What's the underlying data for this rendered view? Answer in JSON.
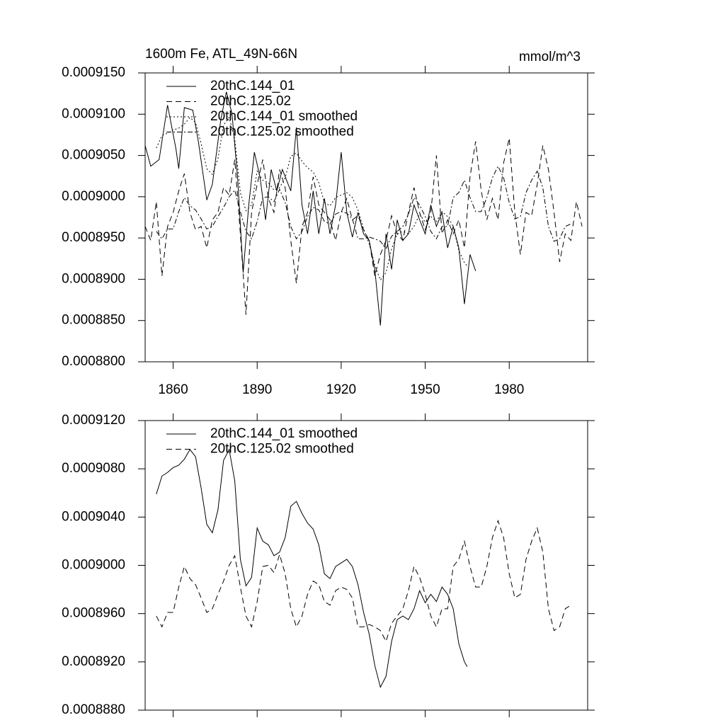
{
  "chart_data": [
    {
      "type": "line",
      "title": "1600m Fe, ATL_49N-66N",
      "units": "mmol/m^3",
      "xlim": [
        1850,
        2008
      ],
      "xticks": [
        1860,
        1890,
        1920,
        1950,
        1980
      ],
      "ylim": [
        0.00088,
        0.000915
      ],
      "yticks": [
        {
          "value": 0.00088,
          "label": "0.0008800"
        },
        {
          "value": 0.000885,
          "label": "0.0008850"
        },
        {
          "value": 0.00089,
          "label": "0.0008900"
        },
        {
          "value": 0.000895,
          "label": "0.0008950"
        },
        {
          "value": 0.0009,
          "label": "0.0009000"
        },
        {
          "value": 0.000905,
          "label": "0.0009050"
        },
        {
          "value": 0.00091,
          "label": "0.0009100"
        },
        {
          "value": 0.000915,
          "label": "0.0009150"
        }
      ],
      "series": [
        {
          "name": "20thC.144_01",
          "color": "#000000",
          "dash": "solid",
          "x": [
            1850,
            1852,
            1855,
            1858,
            1861,
            1862,
            1864,
            1867,
            1869,
            1872,
            1874,
            1877,
            1879,
            1881,
            1883,
            1885,
            1887,
            1889,
            1891,
            1893,
            1895,
            1897,
            1899,
            1902,
            1904,
            1906,
            1908,
            1910,
            1912,
            1914,
            1916,
            1918,
            1920,
            1922,
            1924,
            1926,
            1928,
            1930,
            1932,
            1934,
            1936,
            1938,
            1940,
            1942,
            1944,
            1946,
            1948,
            1950,
            1952,
            1954,
            1956,
            1958,
            1960,
            1962,
            1964,
            1966,
            1968
          ],
          "values": [
            0.0009062,
            0.0009037,
            0.0009045,
            0.0009111,
            0.0009058,
            0.0009034,
            0.0009108,
            0.0009105,
            0.0009067,
            0.0008996,
            0.0009015,
            0.0009093,
            0.0009127,
            0.0009101,
            0.0009024,
            0.0008908,
            0.000899,
            0.0009054,
            0.0009024,
            0.0008972,
            0.0009033,
            0.0009007,
            0.0009033,
            0.0009007,
            0.0009084,
            0.000899,
            0.0008955,
            0.0009007,
            0.0008955,
            0.0008998,
            0.0008955,
            0.000899,
            0.0009054,
            0.0008981,
            0.0008951,
            0.0008981,
            0.0008955,
            0.0008947,
            0.0008912,
            0.0008844,
            0.0008955,
            0.0008912,
            0.0008972,
            0.0008947,
            0.0008955,
            0.000899,
            0.0008972,
            0.0008955,
            0.000899,
            0.0008964,
            0.0008981,
            0.0008938,
            0.0008964,
            0.0008938,
            0.000887,
            0.000893,
            0.000891
          ]
        },
        {
          "name": "20thC.125.02",
          "color": "#000000",
          "dash": "dash",
          "x": [
            1850,
            1852,
            1854,
            1856,
            1858,
            1860,
            1862,
            1864,
            1866,
            1868,
            1870,
            1872,
            1874,
            1876,
            1878,
            1880,
            1882,
            1884,
            1886,
            1888,
            1890,
            1892,
            1894,
            1896,
            1898,
            1900,
            1902,
            1904,
            1906,
            1908,
            1910,
            1912,
            1914,
            1916,
            1918,
            1920,
            1922,
            1924,
            1926,
            1928,
            1930,
            1932,
            1934,
            1936,
            1938,
            1940,
            1942,
            1944,
            1946,
            1948,
            1950,
            1952,
            1954,
            1956,
            1958,
            1960,
            1962,
            1964,
            1966,
            1968,
            1970,
            1972,
            1974,
            1976,
            1978,
            1980,
            1982,
            1984,
            1986,
            1988,
            1990,
            1992,
            1994,
            1996,
            1998,
            2000,
            2002,
            2004,
            2006
          ],
          "values": [
            0.0008964,
            0.0008947,
            0.0008994,
            0.0008904,
            0.0008964,
            0.0008981,
            0.0009007,
            0.0009028,
            0.0008981,
            0.000896,
            0.0008964,
            0.0008938,
            0.0008972,
            0.0008981,
            0.0009011,
            0.0009002,
            0.0009045,
            0.0008955,
            0.0008857,
            0.0008981,
            0.0009015,
            0.0009045,
            0.0008998,
            0.0008981,
            0.0009033,
            0.0009011,
            0.0008947,
            0.0008895,
            0.0008964,
            0.0008981,
            0.0009024,
            0.000899,
            0.0008981,
            0.0008972,
            0.0008947,
            0.0008981,
            0.0008998,
            0.0008972,
            0.0008977,
            0.000896,
            0.0008947,
            0.0008904,
            0.000893,
            0.0008947,
            0.0008977,
            0.0008955,
            0.0008947,
            0.0008981,
            0.0009011,
            0.0008981,
            0.000896,
            0.0008981,
            0.000905,
            0.0008955,
            0.0008972,
            0.0008955,
            0.0008972,
            0.0008938,
            0.0009024,
            0.0009067,
            0.0009007,
            0.0008972,
            0.0008998,
            0.0008972,
            0.0009041,
            0.0009071,
            0.0008981,
            0.000893,
            0.0008981,
            0.0008977,
            0.0009015,
            0.0009062,
            0.0009033,
            0.0008981,
            0.0008921,
            0.0008955,
            0.0008947,
            0.0008994,
            0.0008964
          ]
        },
        {
          "name": "20thC.144_01 smoothed",
          "color": "#000000",
          "dash": "dot",
          "x": [
            1854,
            1856,
            1858,
            1860,
            1862,
            1864,
            1866,
            1868,
            1870,
            1872,
            1874,
            1876,
            1878,
            1880,
            1882,
            1884,
            1886,
            1888,
            1890,
            1892,
            1894,
            1896,
            1898,
            1900,
            1902,
            1904,
            1906,
            1908,
            1910,
            1912,
            1914,
            1916,
            1918,
            1920,
            1922,
            1924,
            1926,
            1928,
            1930,
            1932,
            1934,
            1936,
            1938,
            1940,
            1942,
            1944,
            1946,
            1948,
            1950,
            1952,
            1954,
            1956,
            1958,
            1960,
            1962,
            1964,
            1965
          ],
          "values": [
            0.0009059,
            0.0009074,
            0.0009077,
            0.0009081,
            0.0009083,
            0.0009088,
            0.0009096,
            0.000909,
            0.0009064,
            0.0009034,
            0.0009027,
            0.0009046,
            0.0009087,
            0.0009096,
            0.000907,
            0.0009005,
            0.0008983,
            0.000899,
            0.0009031,
            0.000902,
            0.0009017,
            0.0009008,
            0.0009011,
            0.0009023,
            0.0009049,
            0.0009053,
            0.0009043,
            0.0009035,
            0.000903,
            0.0009017,
            0.0008993,
            0.0008989,
            0.0008999,
            0.0009002,
            0.0009005,
            0.0008999,
            0.0008984,
            0.0008961,
            0.0008943,
            0.0008917,
            0.0008899,
            0.0008908,
            0.0008937,
            0.0008955,
            0.0008958,
            0.0008955,
            0.0008964,
            0.0008979,
            0.0008969,
            0.0008976,
            0.000897,
            0.0008982,
            0.0008976,
            0.0008964,
            0.0008935,
            0.000892,
            0.0008916
          ]
        },
        {
          "name": "20thC.125.02 smoothed",
          "color": "#000000",
          "dash": "dashdot",
          "x": [
            1854,
            1856,
            1858,
            1860,
            1862,
            1864,
            1866,
            1868,
            1870,
            1872,
            1874,
            1876,
            1878,
            1880,
            1882,
            1884,
            1886,
            1888,
            1890,
            1892,
            1894,
            1896,
            1898,
            1900,
            1902,
            1904,
            1906,
            1908,
            1910,
            1912,
            1914,
            1916,
            1918,
            1920,
            1922,
            1924,
            1926,
            1928,
            1930,
            1932,
            1934,
            1936,
            1938,
            1940,
            1942,
            1944,
            1946,
            1948,
            1950,
            1952,
            1954,
            1956,
            1958,
            1960,
            1962,
            1964,
            1966,
            1968,
            1970,
            1972,
            1974,
            1976,
            1978,
            1980,
            1982,
            1984,
            1986,
            1988,
            1990,
            1992,
            1994,
            1996,
            1998,
            2000,
            2002
          ],
          "values": [
            0.0008958,
            0.0008949,
            0.0008961,
            0.0008961,
            0.0008982,
            0.0008999,
            0.0008989,
            0.0008984,
            0.0008973,
            0.0008961,
            0.0008964,
            0.0008976,
            0.0008987,
            0.0009,
            0.0009008,
            0.0008982,
            0.0008958,
            0.0008949,
            0.000897,
            0.0008999,
            0.0009,
            0.0008994,
            0.0009009,
            0.0008993,
            0.0008964,
            0.0008949,
            0.0008958,
            0.0008976,
            0.0008987,
            0.0008984,
            0.000897,
            0.0008967,
            0.0008979,
            0.0008982,
            0.000898,
            0.0008973,
            0.0008949,
            0.0008949,
            0.0008951,
            0.0008949,
            0.0008946,
            0.0008937,
            0.0008952,
            0.0008958,
            0.0008964,
            0.0008979,
            0.0008999,
            0.000899,
            0.0008976,
            0.0008958,
            0.0008949,
            0.0008964,
            0.0008964,
            0.0008999,
            0.0009005,
            0.000902,
            0.0008999,
            0.0008982,
            0.0008982,
            0.0008999,
            0.0009023,
            0.0009037,
            0.0009023,
            0.0008993,
            0.0008973,
            0.0008976,
            0.0009005,
            0.000902,
            0.0009031,
            0.0009011,
            0.0008964,
            0.0008946,
            0.0008949,
            0.0008964,
            0.0008967
          ]
        }
      ]
    },
    {
      "type": "line",
      "xlim": [
        1850,
        2008
      ],
      "xticks": [
        1860,
        1890,
        1920,
        1950,
        1980
      ],
      "ylim": [
        0.000888,
        0.000912
      ],
      "yticks": [
        {
          "value": 0.000888,
          "label": "0.0008880"
        },
        {
          "value": 0.000892,
          "label": "0.0008920"
        },
        {
          "value": 0.000896,
          "label": "0.0008960"
        },
        {
          "value": 0.0009,
          "label": "0.0009000"
        },
        {
          "value": 0.000904,
          "label": "0.0009040"
        },
        {
          "value": 0.000908,
          "label": "0.0009080"
        },
        {
          "value": 0.000912,
          "label": "0.0009120"
        }
      ],
      "series": [
        {
          "name": "20thC.144_01 smoothed",
          "color": "#000000",
          "dash": "solid",
          "x": [
            1854,
            1856,
            1858,
            1860,
            1862,
            1864,
            1866,
            1868,
            1870,
            1872,
            1874,
            1876,
            1878,
            1880,
            1882,
            1884,
            1886,
            1888,
            1890,
            1892,
            1894,
            1896,
            1898,
            1900,
            1902,
            1904,
            1906,
            1908,
            1910,
            1912,
            1914,
            1916,
            1918,
            1920,
            1922,
            1924,
            1926,
            1928,
            1930,
            1932,
            1934,
            1936,
            1938,
            1940,
            1942,
            1944,
            1946,
            1948,
            1950,
            1952,
            1954,
            1956,
            1958,
            1960,
            1962,
            1964,
            1965
          ],
          "values": [
            0.0009059,
            0.0009074,
            0.0009077,
            0.0009081,
            0.0009083,
            0.0009088,
            0.0009096,
            0.000909,
            0.0009064,
            0.0009034,
            0.0009027,
            0.0009046,
            0.0009087,
            0.0009096,
            0.000907,
            0.0009005,
            0.0008983,
            0.000899,
            0.0009031,
            0.000902,
            0.0009017,
            0.0009008,
            0.0009011,
            0.0009023,
            0.0009049,
            0.0009053,
            0.0009043,
            0.0009035,
            0.000903,
            0.0009017,
            0.0008993,
            0.0008989,
            0.0008999,
            0.0009002,
            0.0009005,
            0.0008999,
            0.0008984,
            0.0008961,
            0.0008943,
            0.0008917,
            0.0008899,
            0.0008908,
            0.0008937,
            0.0008955,
            0.0008958,
            0.0008955,
            0.0008964,
            0.0008979,
            0.0008969,
            0.0008976,
            0.000897,
            0.0008982,
            0.0008976,
            0.0008964,
            0.0008935,
            0.000892,
            0.0008916
          ]
        },
        {
          "name": "20thC.125.02 smoothed",
          "color": "#000000",
          "dash": "dash",
          "x": [
            1854,
            1856,
            1858,
            1860,
            1862,
            1864,
            1866,
            1868,
            1870,
            1872,
            1874,
            1876,
            1878,
            1880,
            1882,
            1884,
            1886,
            1888,
            1890,
            1892,
            1894,
            1896,
            1898,
            1900,
            1902,
            1904,
            1906,
            1908,
            1910,
            1912,
            1914,
            1916,
            1918,
            1920,
            1922,
            1924,
            1926,
            1928,
            1930,
            1932,
            1934,
            1936,
            1938,
            1940,
            1942,
            1944,
            1946,
            1948,
            1950,
            1952,
            1954,
            1956,
            1958,
            1960,
            1962,
            1964,
            1966,
            1968,
            1970,
            1972,
            1974,
            1976,
            1978,
            1980,
            1982,
            1984,
            1986,
            1988,
            1990,
            1992,
            1994,
            1996,
            1998,
            2000,
            2002
          ],
          "values": [
            0.0008958,
            0.0008949,
            0.0008961,
            0.0008961,
            0.0008982,
            0.0008999,
            0.0008989,
            0.0008984,
            0.0008973,
            0.0008961,
            0.0008964,
            0.0008976,
            0.0008987,
            0.0009,
            0.0009008,
            0.0008982,
            0.0008958,
            0.0008949,
            0.000897,
            0.0008999,
            0.0009,
            0.0008994,
            0.0009009,
            0.0008993,
            0.0008964,
            0.0008949,
            0.0008958,
            0.0008976,
            0.0008987,
            0.0008984,
            0.000897,
            0.0008967,
            0.0008979,
            0.0008982,
            0.000898,
            0.0008973,
            0.0008949,
            0.0008949,
            0.0008951,
            0.0008949,
            0.0008946,
            0.0008937,
            0.0008952,
            0.0008958,
            0.0008964,
            0.0008979,
            0.0008999,
            0.000899,
            0.0008976,
            0.0008958,
            0.0008949,
            0.0008964,
            0.0008964,
            0.0008999,
            0.0009005,
            0.000902,
            0.0008999,
            0.0008982,
            0.0008982,
            0.0008999,
            0.0009023,
            0.0009037,
            0.0009023,
            0.0008993,
            0.0008973,
            0.0008976,
            0.0009005,
            0.000902,
            0.0009031,
            0.0009011,
            0.0008964,
            0.0008946,
            0.0008949,
            0.0008964,
            0.0008967
          ]
        }
      ]
    }
  ]
}
